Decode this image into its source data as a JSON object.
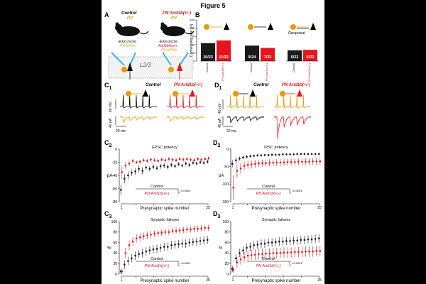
{
  "figure": {
    "title": "Figure 5"
  },
  "panelA": {
    "label": "A",
    "control_title": "Control",
    "control_sub": "PV",
    "control_geno1": "Emx-1-Cre;",
    "control_geno2": "PV-tdTom",
    "mutant_title": "PN Arid1b(+/-)",
    "mutant_sub": "PV",
    "mutant_geno1": "Emx-1-Cre;",
    "mutant_geno2": "Arid1bflox/+;",
    "mutant_geno3": "PV-tdTom",
    "layer_label": "L2/3"
  },
  "panelB": {
    "label": "B",
    "ylabel": "Connectivity rate (%)",
    "reciprocal_label": "Reciprocal",
    "groups": [
      {
        "control_value": 43.5,
        "mutant_value": 50.0,
        "control_label": "10/23",
        "mutant_label": "11/22",
        "xticks": [
          "Control",
          "PN Arid1b(+/-)"
        ]
      },
      {
        "control_value": 37.5,
        "mutant_value": 31.8,
        "control_label": "9/24",
        "mutant_label": "7/22",
        "xticks": [
          "Control",
          "PN Arid1b(+/-)"
        ]
      },
      {
        "control_value": 26.1,
        "mutant_value": 27.3,
        "control_label": "6/23",
        "mutant_label": "6/22",
        "xticks": [
          "Control",
          "PN Arid1b(+/-)"
        ]
      }
    ],
    "yticks": [
      "0",
      "20",
      "40",
      "60",
      "80",
      "100"
    ]
  },
  "panelC1": {
    "label": "C",
    "sub": "1",
    "control_title": "Control",
    "mutant_title": "PN Arid1b(+/-)",
    "scale_mv": "60 mV",
    "scale_pa": "40 pA",
    "scale_ms": "20 ms"
  },
  "panelD1": {
    "label": "D",
    "sub": "1",
    "control_title": "Control",
    "mutant_title": "PN Arid1b(+/-)",
    "scale_mv": "40 mV",
    "scale_pa": "40 pA",
    "scale_ms": "20 ms"
  },
  "panelC2": {
    "label": "C",
    "sub": "2",
    "title": "EPSC potency",
    "ylabel": "pA",
    "xlabel": "Presynaptic spike number",
    "yticks": [
      "-80",
      "-60",
      "-40",
      "-20",
      "0"
    ],
    "xticks": [
      "1",
      "5",
      "10",
      "15",
      "20",
      "25"
    ],
    "legend_control": "Control",
    "legend_mutant": "PN Arid1b(+/-)",
    "pvalue": "<0.0001"
  },
  "panelD2": {
    "label": "D",
    "sub": "2",
    "title": "IPSC potency",
    "ylabel": "pA",
    "xlabel": "Presynaptic spike number",
    "yticks": [
      "-150",
      "-100",
      "-50",
      "0"
    ],
    "xticks": [
      "1",
      "5",
      "10",
      "15",
      "20",
      "25"
    ],
    "legend_control": "Control",
    "legend_mutant": "PN Arid1b(+/-)",
    "pvalue": "<0.0001"
  },
  "panelC3": {
    "label": "C",
    "sub": "3",
    "title": "Synaptic failures",
    "ylabel": "%",
    "xlabel": "Presynaptic spike number",
    "yticks": [
      "0",
      "20",
      "40",
      "60",
      "80",
      "100"
    ],
    "xticks": [
      "1",
      "5",
      "10",
      "15",
      "20",
      "25"
    ],
    "legend_control": "Control",
    "legend_mutant": "PN Arid1b(+/-)",
    "pvalue": "<0.0001"
  },
  "panelD3": {
    "label": "D",
    "sub": "3",
    "title": "Synaptic failures",
    "ylabel": "%",
    "xlabel": "Presynaptic spike number",
    "yticks": [
      "0",
      "20",
      "40",
      "60",
      "80",
      "100"
    ],
    "xticks": [
      "1",
      "5",
      "10",
      "15",
      "20",
      "25"
    ],
    "legend_control": "Control",
    "legend_mutant": "PN Arid1b(+/-)",
    "pvalue": "<0.0001"
  },
  "colors": {
    "control": "#1a1a1a",
    "mutant": "#e8141c",
    "pv": "#e89a0c"
  },
  "chart_data": [
    {
      "type": "bar",
      "panel": "B",
      "categories": [
        "PV to PN",
        "PN to PV",
        "Reciprocal"
      ],
      "series": [
        {
          "name": "Control",
          "values": [
            43.5,
            37.5,
            26.1
          ]
        },
        {
          "name": "PN Arid1b(+/-)",
          "values": [
            50.0,
            31.8,
            27.3
          ]
        }
      ],
      "ylabel": "Connectivity rate (%)",
      "ylim": [
        0,
        100
      ]
    },
    {
      "type": "scatter",
      "panel": "C2",
      "title": "EPSC potency",
      "xlabel": "Presynaptic spike number",
      "ylabel": "pA",
      "xlim": [
        1,
        25
      ],
      "ylim": [
        -80,
        0
      ],
      "x": [
        1,
        2,
        3,
        4,
        5,
        6,
        7,
        8,
        9,
        10,
        11,
        12,
        13,
        14,
        15,
        16,
        17,
        18,
        19,
        20,
        21,
        22,
        23,
        24,
        25
      ],
      "series": [
        {
          "name": "Control",
          "values": [
            -62,
            -45,
            -40,
            -36,
            -34,
            -30,
            -33,
            -28,
            -30,
            -27,
            -29,
            -26,
            -25,
            -27,
            -24,
            -26,
            -23,
            -25,
            -22,
            -24,
            -21,
            -22,
            -20,
            -21,
            -19
          ],
          "err": [
            8,
            7,
            6,
            5,
            5,
            5,
            5,
            4,
            4,
            4,
            4,
            4,
            4,
            4,
            3,
            3,
            3,
            3,
            3,
            3,
            3,
            3,
            3,
            3,
            3
          ]
        },
        {
          "name": "PN Arid1b(+/-)",
          "values": [
            -35,
            -25,
            -22,
            -18,
            -20,
            -19,
            -17,
            -18,
            -16,
            -17,
            -18,
            -16,
            -17,
            -15,
            -16,
            -17,
            -15,
            -16,
            -15,
            -16,
            -17,
            -15,
            -16,
            -15,
            -14
          ],
          "err": [
            10,
            5,
            4,
            3,
            3,
            3,
            3,
            3,
            3,
            3,
            3,
            3,
            3,
            3,
            3,
            3,
            3,
            3,
            3,
            3,
            3,
            3,
            3,
            3,
            3
          ]
        }
      ],
      "pvalue": "<0.0001"
    },
    {
      "type": "scatter",
      "panel": "D2",
      "title": "IPSC potency",
      "xlabel": "Presynaptic spike number",
      "ylabel": "pA",
      "xlim": [
        1,
        25
      ],
      "ylim": [
        -150,
        0
      ],
      "x": [
        1,
        2,
        3,
        4,
        5,
        6,
        7,
        8,
        9,
        10,
        11,
        12,
        13,
        14,
        15,
        16,
        17,
        18,
        19,
        20,
        21,
        22,
        23,
        24,
        25
      ],
      "series": [
        {
          "name": "Control",
          "values": [
            -42,
            -32,
            -27,
            -24,
            -22,
            -20,
            -19,
            -18,
            -18,
            -17,
            -17,
            -16,
            -16,
            -16,
            -15,
            -15,
            -15,
            -15,
            -14,
            -14,
            -14,
            -14,
            -14,
            -14,
            -14
          ],
          "err": [
            10,
            8,
            6,
            5,
            5,
            4,
            4,
            4,
            4,
            4,
            4,
            4,
            3,
            3,
            3,
            3,
            3,
            3,
            3,
            3,
            3,
            3,
            3,
            3,
            3
          ]
        },
        {
          "name": "PN Arid1b(+/-)",
          "values": [
            -110,
            -62,
            -55,
            -48,
            -45,
            -44,
            -42,
            -41,
            -40,
            -40,
            -39,
            -39,
            -38,
            -38,
            -38,
            -37,
            -37,
            -37,
            -36,
            -36,
            -36,
            -36,
            -35,
            -35,
            -35
          ],
          "err": [
            35,
            20,
            15,
            12,
            12,
            11,
            11,
            10,
            10,
            10,
            10,
            10,
            10,
            10,
            10,
            10,
            10,
            10,
            10,
            10,
            10,
            10,
            10,
            10,
            10
          ]
        }
      ],
      "pvalue": "<0.0001"
    },
    {
      "type": "scatter",
      "panel": "C3",
      "title": "Synaptic failures",
      "xlabel": "Presynaptic spike number",
      "ylabel": "%",
      "xlim": [
        1,
        25
      ],
      "ylim": [
        0,
        100
      ],
      "x": [
        1,
        2,
        3,
        4,
        5,
        6,
        7,
        8,
        9,
        10,
        11,
        12,
        13,
        14,
        15,
        16,
        17,
        18,
        19,
        20,
        21,
        22,
        23,
        24,
        25
      ],
      "series": [
        {
          "name": "Control",
          "values": [
            5,
            18,
            25,
            30,
            35,
            38,
            40,
            43,
            45,
            47,
            48,
            50,
            52,
            52,
            55,
            56,
            57,
            58,
            58,
            60,
            61,
            62,
            63,
            64,
            65
          ],
          "err": [
            5,
            8,
            8,
            8,
            8,
            8,
            8,
            8,
            8,
            8,
            8,
            8,
            8,
            8,
            8,
            8,
            8,
            8,
            8,
            8,
            8,
            8,
            8,
            8,
            8
          ]
        },
        {
          "name": "PN Arid1b(+/-)",
          "values": [
            5,
            40,
            55,
            62,
            68,
            70,
            72,
            74,
            75,
            77,
            78,
            79,
            80,
            80,
            82,
            82,
            83,
            84,
            85,
            85,
            86,
            86,
            87,
            88,
            88
          ],
          "err": [
            5,
            10,
            9,
            8,
            8,
            7,
            7,
            7,
            7,
            6,
            6,
            6,
            6,
            6,
            6,
            6,
            6,
            6,
            6,
            6,
            6,
            6,
            6,
            6,
            6
          ]
        }
      ],
      "pvalue": "<0.0001"
    },
    {
      "type": "scatter",
      "panel": "D3",
      "title": "Synaptic failures",
      "xlabel": "Presynaptic spike number",
      "ylabel": "%",
      "xlim": [
        1,
        25
      ],
      "ylim": [
        0,
        100
      ],
      "x": [
        1,
        2,
        3,
        4,
        5,
        6,
        7,
        8,
        9,
        10,
        11,
        12,
        13,
        14,
        15,
        16,
        17,
        18,
        19,
        20,
        21,
        22,
        23,
        24,
        25
      ],
      "series": [
        {
          "name": "Control",
          "values": [
            10,
            30,
            40,
            45,
            50,
            52,
            55,
            56,
            58,
            58,
            60,
            60,
            61,
            62,
            62,
            63,
            63,
            64,
            64,
            65,
            65,
            66,
            66,
            67,
            68
          ],
          "err": [
            6,
            8,
            8,
            8,
            8,
            8,
            8,
            8,
            8,
            8,
            8,
            8,
            8,
            8,
            8,
            8,
            8,
            8,
            8,
            8,
            8,
            8,
            8,
            8,
            8
          ]
        },
        {
          "name": "PN Arid1b(+/-)",
          "values": [
            8,
            22,
            28,
            32,
            35,
            36,
            37,
            38,
            38,
            39,
            39,
            40,
            40,
            40,
            41,
            41,
            41,
            42,
            42,
            42,
            43,
            43,
            43,
            44,
            44
          ],
          "err": [
            6,
            10,
            10,
            10,
            10,
            10,
            10,
            10,
            10,
            10,
            10,
            10,
            10,
            10,
            10,
            10,
            10,
            10,
            10,
            10,
            10,
            10,
            10,
            10,
            10
          ]
        }
      ],
      "pvalue": "<0.0001"
    }
  ]
}
